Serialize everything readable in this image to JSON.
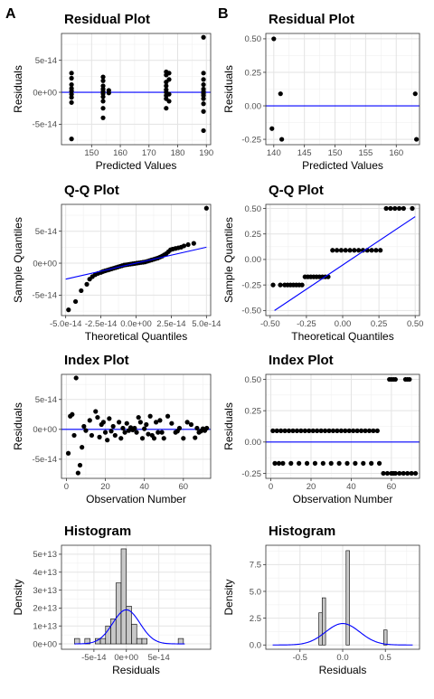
{
  "panel_labels": [
    "A",
    "B"
  ],
  "chart_data": [
    {
      "id": "a1",
      "type": "scatter",
      "title": "Residual Plot",
      "xlabel": "Predicted Values",
      "ylabel": "Residuals",
      "xlim": [
        139.5,
        191.5
      ],
      "ylim": [
        -8.2e-14,
        9.2e-14
      ],
      "xticks": [
        150,
        160,
        170,
        180,
        190
      ],
      "xticklabels": [
        "150",
        "160",
        "170",
        "180",
        "190"
      ],
      "yticks": [
        -5e-14,
        0,
        5e-14
      ],
      "yticklabels": [
        "-5e-14",
        "0e+00",
        "5e-14"
      ],
      "hline": 0,
      "x": [
        143,
        143,
        143,
        143,
        143,
        143,
        143,
        143,
        143,
        154,
        154,
        154,
        154,
        154,
        154,
        154,
        154,
        154,
        154,
        156,
        156,
        176,
        176,
        176,
        176,
        176,
        176,
        176,
        176,
        176,
        177,
        177,
        177,
        177,
        189,
        189,
        189,
        189,
        189,
        189,
        189,
        189,
        189,
        189,
        189,
        189
      ],
      "y": [
        3e-14,
        2.2e-14,
        1.2e-14,
        6e-15,
        2e-15,
        -3e-15,
        -8e-15,
        -1.6e-14,
        -7.3e-14,
        2.4e-14,
        1.8e-14,
        1e-14,
        5e-15,
        1e-15,
        -2e-15,
        -7e-15,
        -1.4e-14,
        -2.5e-14,
        -4e-14,
        3e-15,
        -1e-15,
        3.2e-14,
        2.7e-14,
        1.6e-14,
        1e-14,
        4e-15,
        0,
        -5e-15,
        -1e-14,
        -2.5e-14,
        3e-14,
        2e-14,
        -3e-15,
        -1.4e-14,
        8.6e-14,
        3e-14,
        2e-14,
        1.2e-14,
        5e-15,
        1e-15,
        -2e-15,
        -5e-15,
        -1e-14,
        -1.8e-14,
        -3e-14,
        -6e-14
      ]
    },
    {
      "id": "b1",
      "type": "scatter",
      "title": "Residual Plot",
      "xlabel": "Predicted Values",
      "ylabel": "Residuals",
      "xlim": [
        138.7,
        163.8
      ],
      "ylim": [
        -0.29,
        0.54
      ],
      "xticks": [
        140,
        145,
        150,
        155,
        160
      ],
      "xticklabels": [
        "140",
        "145",
        "150",
        "155",
        "160"
      ],
      "yticks": [
        -0.25,
        0,
        0.25,
        0.5
      ],
      "yticklabels": [
        "-0.25",
        "0.00",
        "0.25",
        "0.50"
      ],
      "hline": 0,
      "x": [
        139.7,
        140.0,
        141.1,
        141.3,
        163.1,
        163.3
      ],
      "y": [
        -0.17,
        0.5,
        0.09,
        -0.25,
        0.09,
        -0.25
      ]
    },
    {
      "id": "a2",
      "type": "scatter",
      "title": "Q-Q Plot",
      "xlabel": "Theoretical Quantiles",
      "ylabel": "Sample Quantiles",
      "xlim": [
        -5.3e-14,
        5.3e-14
      ],
      "ylim": [
        -8.2e-14,
        9.2e-14
      ],
      "xticks": [
        -5e-14,
        -2.5e-14,
        0,
        2.5e-14,
        5e-14
      ],
      "xticklabels": [
        "-5.0e-14",
        "-2.5e-14",
        "0.0e+00",
        "2.5e-14",
        "5.0e-14"
      ],
      "yticks": [
        -5e-14,
        0,
        5e-14
      ],
      "yticklabels": [
        "-5e-14",
        "0e+00",
        "5e-14"
      ],
      "line": [
        [
          -5e-14,
          -2.5e-14
        ],
        [
          5e-14,
          2.5e-14
        ]
      ],
      "x": [
        -4.8e-14,
        -4.3e-14,
        -3.9e-14,
        -3.5e-14,
        -3.3e-14,
        -3.1e-14,
        -2.9e-14,
        -2.7e-14,
        -2.5e-14,
        -2.35e-14,
        -2.2e-14,
        -2.05e-14,
        -1.9e-14,
        -1.75e-14,
        -1.6e-14,
        -1.45e-14,
        -1.3e-14,
        -1.15e-14,
        -1e-14,
        -8.5e-15,
        -7e-15,
        -5.5e-15,
        -4e-15,
        -2.5e-15,
        -1e-15,
        5e-16,
        2e-15,
        3.5e-15,
        5e-15,
        6.5e-15,
        8e-15,
        9.5e-15,
        1.1e-14,
        1.25e-14,
        1.4e-14,
        1.55e-14,
        1.7e-14,
        1.85e-14,
        2e-14,
        2.15e-14,
        2.3e-14,
        2.45e-14,
        2.6e-14,
        2.8e-14,
        3e-14,
        3.2e-14,
        3.4e-14,
        3.7e-14,
        4.1e-14,
        5e-14
      ],
      "y": [
        -7.3e-14,
        -6e-14,
        -4.3e-14,
        -3.3e-14,
        -2.5e-14,
        -2.1e-14,
        -1.8e-14,
        -1.6e-14,
        -1.45e-14,
        -1.3e-14,
        -1.2e-14,
        -1.1e-14,
        -1e-14,
        -9e-15,
        -8e-15,
        -7e-15,
        -6e-15,
        -5e-15,
        -4e-15,
        -3e-15,
        -2.5e-15,
        -2e-15,
        -1.5e-15,
        -1e-15,
        -5e-16,
        0,
        5e-16,
        1e-15,
        1.5e-15,
        2e-15,
        3e-15,
        4e-15,
        5e-15,
        6e-15,
        7e-15,
        8e-15,
        9.5e-15,
        1.1e-14,
        1.3e-14,
        1.5e-14,
        1.8e-14,
        2.1e-14,
        2.2e-14,
        2.3e-14,
        2.4e-14,
        2.5e-14,
        2.7e-14,
        2.9e-14,
        3.1e-14,
        8.6e-14
      ]
    },
    {
      "id": "b2",
      "type": "scatter",
      "title": "Q-Q Plot",
      "xlabel": "Theoretical Quantiles",
      "ylabel": "Sample Quantiles",
      "xlim": [
        -0.53,
        0.53
      ],
      "ylim": [
        -0.55,
        0.54
      ],
      "xticks": [
        -0.5,
        -0.25,
        0,
        0.25,
        0.5
      ],
      "xticklabels": [
        "-0.50",
        "-0.25",
        "0.00",
        "0.25",
        "0.50"
      ],
      "yticks": [
        -0.5,
        -0.25,
        0,
        0.25,
        0.5
      ],
      "yticklabels": [
        "-0.50",
        "-0.25",
        "0.00",
        "0.25",
        "0.50"
      ],
      "line": [
        [
          -0.47,
          -0.5
        ],
        [
          0.5,
          0.42
        ]
      ],
      "x": [
        -0.48,
        -0.43,
        -0.4,
        -0.38,
        -0.36,
        -0.34,
        -0.32,
        -0.3,
        -0.28,
        -0.26,
        -0.24,
        -0.22,
        -0.2,
        -0.18,
        -0.16,
        -0.14,
        -0.12,
        -0.1,
        -0.07,
        -0.04,
        -0.01,
        0.02,
        0.05,
        0.08,
        0.11,
        0.14,
        0.17,
        0.2,
        0.23,
        0.26,
        0.3,
        0.33,
        0.36,
        0.39,
        0.42,
        0.48
      ],
      "y": [
        -0.25,
        -0.25,
        -0.25,
        -0.25,
        -0.25,
        -0.25,
        -0.25,
        -0.25,
        -0.25,
        -0.17,
        -0.17,
        -0.17,
        -0.17,
        -0.17,
        -0.17,
        -0.17,
        -0.17,
        -0.17,
        0.09,
        0.09,
        0.09,
        0.09,
        0.09,
        0.09,
        0.09,
        0.09,
        0.09,
        0.09,
        0.09,
        0.09,
        0.5,
        0.5,
        0.5,
        0.5,
        0.5,
        0.5
      ]
    },
    {
      "id": "a3",
      "type": "scatter",
      "title": "Index Plot",
      "xlabel": "Observation Number",
      "ylabel": "Residuals",
      "xlim": [
        -2.5,
        74
      ],
      "ylim": [
        -8.2e-14,
        9.2e-14
      ],
      "xticks": [
        0,
        20,
        40,
        60
      ],
      "xticklabels": [
        "0",
        "20",
        "40",
        "60"
      ],
      "yticks": [
        -5e-14,
        0,
        5e-14
      ],
      "yticklabels": [
        "-5e-14",
        "0e+00",
        "5e-14"
      ],
      "hline": 0,
      "x": [
        1,
        2,
        3,
        4,
        5,
        6,
        7,
        8,
        9,
        10,
        12,
        13,
        15,
        16,
        17,
        18,
        19,
        20,
        21,
        22,
        23,
        24,
        25,
        27,
        28,
        29,
        30,
        31,
        32,
        33,
        34,
        35,
        36,
        37,
        38,
        39,
        40,
        41,
        42,
        43,
        44,
        45,
        46,
        47,
        48,
        49,
        50,
        52,
        54,
        56,
        57,
        58,
        60,
        62,
        64,
        66,
        67,
        68,
        69,
        70,
        71,
        72
      ],
      "y": [
        -4e-14,
        2.2e-14,
        2.5e-14,
        -1e-14,
        8.6e-14,
        -7.3e-14,
        -6e-14,
        -3e-14,
        5e-15,
        -2e-15,
        1.5e-14,
        -1e-14,
        3e-14,
        2e-14,
        -1.3e-14,
        8e-15,
        1.2e-14,
        -5e-15,
        -1.8e-14,
        1.8e-14,
        -3e-15,
        5e-15,
        -1e-14,
        1.2e-14,
        -1.5e-14,
        2e-15,
        -5e-15,
        1e-14,
        -2e-15,
        3e-15,
        -1e-15,
        2e-15,
        -5e-15,
        2e-14,
        1.2e-14,
        -1.5e-14,
        1e-15,
        8e-15,
        -8e-15,
        2.2e-14,
        -1e-14,
        -1.5e-14,
        1.2e-14,
        -5e-15,
        1.5e-14,
        -5e-15,
        -1.5e-14,
        2.2e-14,
        1e-14,
        -5e-15,
        -3e-15,
        2e-15,
        -1.5e-14,
        1.2e-14,
        8e-15,
        -1.4e-14,
        2e-15,
        -5e-15,
        -3e-15,
        1e-15,
        -2e-15,
        2e-15
      ]
    },
    {
      "id": "b3",
      "type": "scatter",
      "title": "Index Plot",
      "xlabel": "Observation Number",
      "ylabel": "Residuals",
      "xlim": [
        -2.5,
        74
      ],
      "ylim": [
        -0.29,
        0.54
      ],
      "xticks": [
        0,
        20,
        40,
        60
      ],
      "xticklabels": [
        "0",
        "20",
        "40",
        "60"
      ],
      "yticks": [
        -0.25,
        0,
        0.25,
        0.5
      ],
      "yticklabels": [
        "-0.25",
        "0.00",
        "0.25",
        "0.50"
      ],
      "hline": 0,
      "x": [
        1,
        3,
        5,
        7,
        9,
        11,
        13,
        15,
        17,
        19,
        21,
        23,
        25,
        27,
        29,
        31,
        33,
        35,
        37,
        39,
        41,
        43,
        45,
        47,
        49,
        51,
        53,
        2,
        4,
        6,
        10,
        14,
        18,
        22,
        26,
        30,
        34,
        38,
        42,
        46,
        50,
        54,
        56,
        58,
        60,
        61,
        62,
        64,
        66,
        68,
        70,
        72,
        59,
        60,
        61,
        62,
        67,
        68,
        69
      ],
      "y": [
        0.09,
        0.09,
        0.09,
        0.09,
        0.09,
        0.09,
        0.09,
        0.09,
        0.09,
        0.09,
        0.09,
        0.09,
        0.09,
        0.09,
        0.09,
        0.09,
        0.09,
        0.09,
        0.09,
        0.09,
        0.09,
        0.09,
        0.09,
        0.09,
        0.09,
        0.09,
        0.09,
        -0.17,
        -0.17,
        -0.17,
        -0.17,
        -0.17,
        -0.17,
        -0.17,
        -0.17,
        -0.17,
        -0.17,
        -0.17,
        -0.17,
        -0.17,
        -0.17,
        -0.17,
        -0.25,
        -0.25,
        -0.25,
        -0.25,
        -0.25,
        -0.25,
        -0.25,
        -0.25,
        -0.25,
        -0.25,
        0.5,
        0.5,
        0.5,
        0.5,
        0.5,
        0.5,
        0.5
      ]
    },
    {
      "id": "a4",
      "type": "bar",
      "title": "Histogram",
      "xlabel": "Residuals",
      "ylabel": "Density",
      "xlim": [
        -1e-13,
        1.3e-13
      ],
      "ylim": [
        -3000000000000.0,
        55000000000000.0
      ],
      "xticks": [
        -5e-14,
        0,
        5e-14
      ],
      "xticklabels": [
        "-5e-14",
        "0e+00",
        "5e-14"
      ],
      "yticks": [
        0,
        10000000000000.0,
        20000000000000.0,
        30000000000000.0,
        40000000000000.0,
        50000000000000.0
      ],
      "yticklabels": [
        "0e+00",
        "1e+13",
        "2e+13",
        "3e+13",
        "4e+13",
        "5e+13"
      ],
      "bin_start": -8e-14,
      "bin_width": 8e-15,
      "values": [
        3000000000000.0,
        0,
        3000000000000.0,
        0,
        3000000000000.0,
        3000000000000.0,
        10000000000000.0,
        14000000000000.0,
        34000000000000.0,
        53000000000000.0,
        21000000000000.0,
        11000000000000.0,
        3000000000000.0,
        3000000000000.0,
        0,
        0,
        0,
        0,
        0,
        0,
        3000000000000.0
      ],
      "density_curve": {
        "mean": 0,
        "sd": 2.1e-14,
        "peak": 19000000000000.0,
        "from": -8e-14,
        "to": 9e-14
      }
    },
    {
      "id": "b4",
      "type": "bar",
      "title": "Histogram",
      "xlabel": "Residuals",
      "ylabel": "Density",
      "xlim": [
        -0.9,
        0.9
      ],
      "ylim": [
        -0.4,
        9.3
      ],
      "xticks": [
        -0.5,
        0,
        0.5
      ],
      "xticklabels": [
        "-0.5",
        "0.0",
        "0.5"
      ],
      "yticks": [
        0,
        2.5,
        5,
        7.5
      ],
      "yticklabels": [
        "0.0",
        "2.5",
        "5.0",
        "7.5"
      ],
      "bin_start": -0.28,
      "bin_width": 0.04,
      "values": [
        3.0,
        4.4,
        0,
        0,
        0,
        0,
        0,
        0,
        8.8,
        0,
        0,
        0,
        0,
        0,
        0,
        0,
        0,
        0,
        0,
        1.4
      ],
      "density_curve": {
        "mean": 0,
        "sd": 0.2,
        "peak": 2.0,
        "from": -0.82,
        "to": 0.82
      }
    }
  ]
}
